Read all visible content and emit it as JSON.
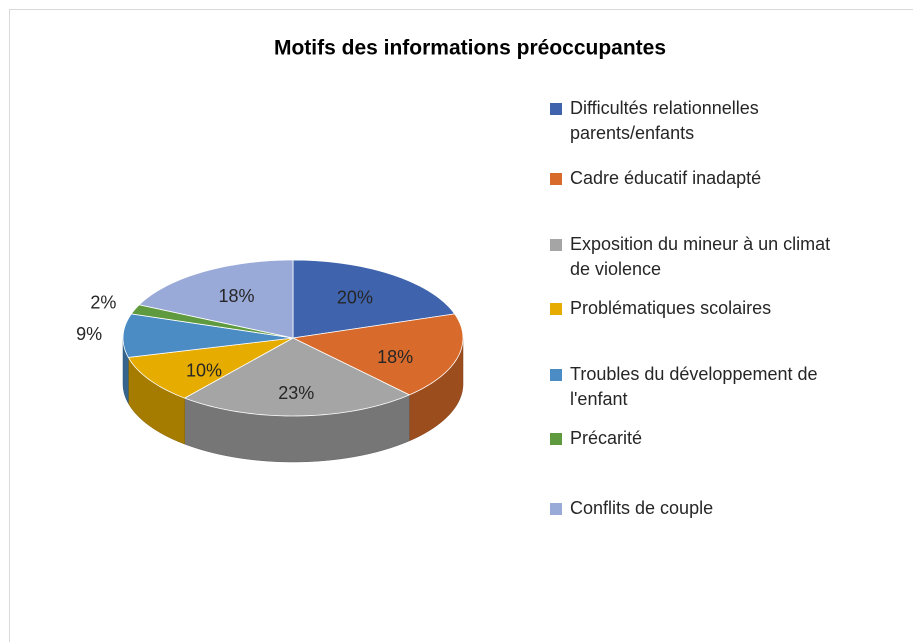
{
  "chart_data": {
    "type": "pie",
    "title": "Motifs des informations préoccupantes",
    "categories": [
      "Difficultés relationnelles parents/enfants",
      "Cadre éducatif inadapté",
      "Exposition du mineur à un climat de violence",
      "Problématiques scolaires",
      "Troubles du développement de l'enfant",
      "Précarité",
      "Conflits de couple"
    ],
    "values": [
      20,
      18,
      23,
      10,
      9,
      2,
      18
    ],
    "value_labels": [
      "20%",
      "18%",
      "23%",
      "10%",
      "9%",
      "2%",
      "18%"
    ],
    "colors": [
      "#3f63ad",
      "#d86b2b",
      "#a5a5a5",
      "#e6ac00",
      "#4a8cc3",
      "#5f9a3f",
      "#9aaad8"
    ],
    "legend": "right"
  }
}
